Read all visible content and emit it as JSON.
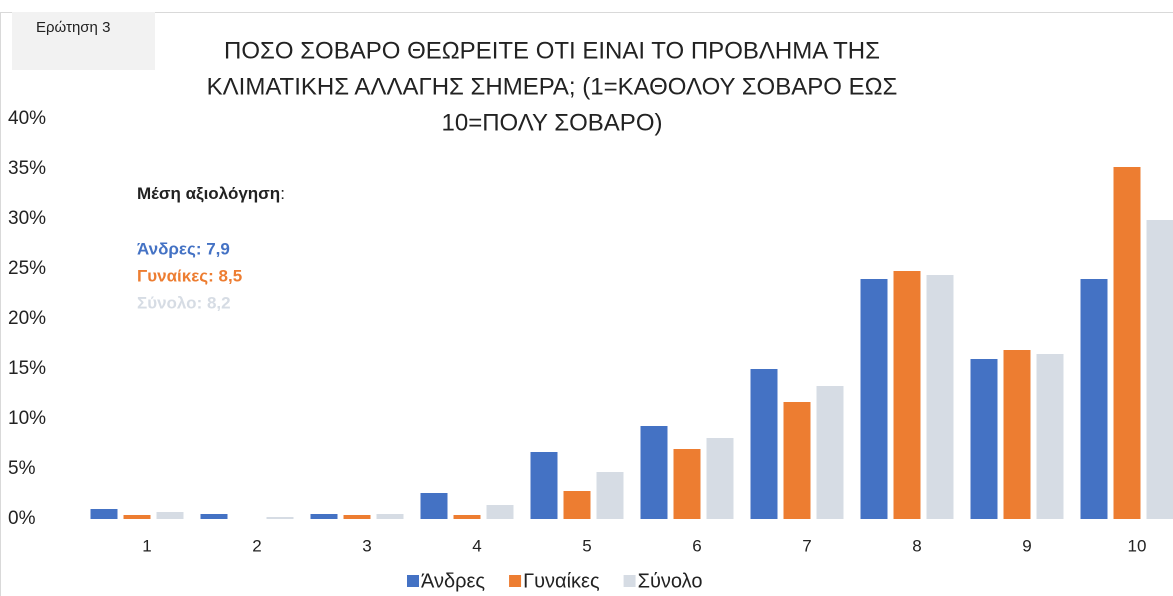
{
  "chart_data": {
    "type": "bar",
    "tag": "Ερώτηση 3",
    "title": [
      "ΠΟΣΟ ΣΟΒΑΡΟ ΘΕΩΡΕΙΤΕ ΟΤΙ ΕΙΝΑΙ ΤΟ ΠΡΟΒΛΗΜΑ ΤΗΣ",
      "ΚΛΙΜΑΤΙΚΗΣ ΑΛΛΑΓΗΣ ΣΗΜΕΡΑ; (1=ΚΑΘΟΛΟΥ ΣΟΒΑΡΟ ΕΩΣ",
      "10=ΠΟΛΥ ΣΟΒΑΡΟ)"
    ],
    "annotation_title": "Μέση αξιολόγηση",
    "annotation_colon": ":",
    "annotations": [
      "Άνδρες: 7,9",
      "Γυναίκες: 8,5",
      "Σύνολο: 8,2"
    ],
    "categories": [
      "1",
      "2",
      "3",
      "4",
      "5",
      "6",
      "7",
      "8",
      "9",
      "10"
    ],
    "series": [
      {
        "name": "Άνδρες",
        "color": "#4472c4",
        "values": [
          1,
          0.5,
          0.5,
          2.6,
          6.7,
          9.3,
          15,
          24,
          16,
          24
        ]
      },
      {
        "name": "Γυναίκες",
        "color": "#ed7d31",
        "values": [
          0.4,
          0,
          0.4,
          0.4,
          2.8,
          7,
          11.7,
          24.8,
          16.9,
          35.2
        ]
      },
      {
        "name": "Σύνολο",
        "color": "#d6dce4",
        "values": [
          0.7,
          0.2,
          0.5,
          1.4,
          4.7,
          8.1,
          13.3,
          24.4,
          16.5,
          29.9
        ]
      }
    ],
    "ylim": [
      0,
      40
    ],
    "yticks": [
      {
        "value": 0,
        "label": "0%"
      },
      {
        "value": 5,
        "label": "5%"
      },
      {
        "value": 10,
        "label": "10%"
      },
      {
        "value": 15,
        "label": "15%"
      },
      {
        "value": 20,
        "label": "20%"
      },
      {
        "value": 25,
        "label": "25%"
      },
      {
        "value": 30,
        "label": "30%"
      },
      {
        "value": 35,
        "label": "35%"
      },
      {
        "value": 40,
        "label": "40%"
      }
    ],
    "grid": false,
    "legend": "bottom"
  }
}
